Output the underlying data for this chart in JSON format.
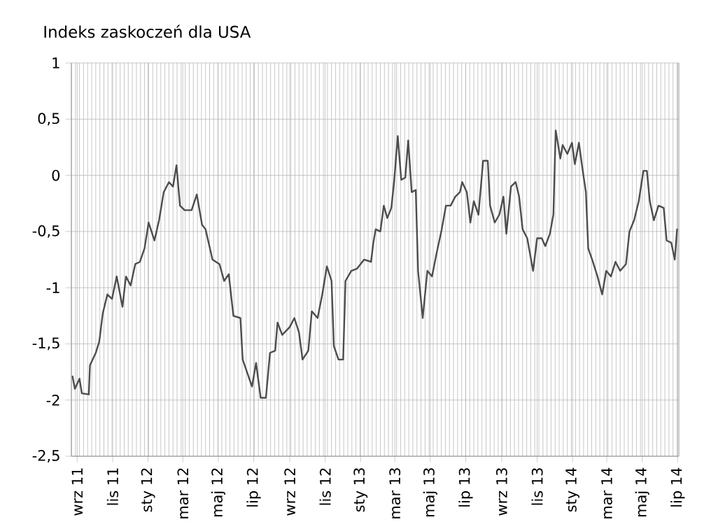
{
  "chart_data": {
    "type": "line",
    "title": "Indeks zaskoczeń dla USA",
    "x": [
      "2011-08-24",
      "2011-08-28",
      "2011-09-05",
      "2011-09-09",
      "2011-09-21",
      "2011-09-23",
      "2011-10-03",
      "2011-10-09",
      "2011-10-15",
      "2011-10-23",
      "2011-10-31",
      "2011-11-08",
      "2011-11-18",
      "2011-11-24",
      "2011-12-02",
      "2011-12-10",
      "2011-12-18",
      "2011-12-26",
      "2012-01-02",
      "2012-01-12",
      "2012-01-20",
      "2012-01-28",
      "2012-02-06",
      "2012-02-13",
      "2012-02-19",
      "2012-02-25",
      "2012-03-04",
      "2012-03-16",
      "2012-03-25",
      "2012-04-03",
      "2012-04-09",
      "2012-04-21",
      "2012-05-03",
      "2012-05-11",
      "2012-05-19",
      "2012-05-27",
      "2012-06-08",
      "2012-06-12",
      "2012-06-20",
      "2012-06-28",
      "2012-07-05",
      "2012-07-13",
      "2012-07-22",
      "2012-07-29",
      "2012-08-07",
      "2012-08-11",
      "2012-08-19",
      "2012-09-01",
      "2012-09-09",
      "2012-09-17",
      "2012-09-23",
      "2012-10-03",
      "2012-10-09",
      "2012-10-19",
      "2012-10-27",
      "2012-11-04",
      "2012-11-12",
      "2012-11-16",
      "2012-11-24",
      "2012-12-02",
      "2012-12-06",
      "2012-12-16",
      "2012-12-26",
      "2013-01-07",
      "2013-01-19",
      "2013-01-23",
      "2013-01-27",
      "2013-02-04",
      "2013-02-10",
      "2013-02-16",
      "2013-02-23",
      "2013-02-28",
      "2013-03-06",
      "2013-03-12",
      "2013-03-19",
      "2013-03-24",
      "2013-03-30",
      "2013-04-06",
      "2013-04-10",
      "2013-04-18",
      "2013-04-26",
      "2013-05-04",
      "2013-05-12",
      "2013-05-20",
      "2013-05-28",
      "2013-06-05",
      "2013-06-13",
      "2013-06-21",
      "2013-06-25",
      "2013-07-03",
      "2013-07-09",
      "2013-07-15",
      "2013-07-23",
      "2013-07-31",
      "2013-08-08",
      "2013-08-12",
      "2013-08-20",
      "2013-08-28",
      "2013-09-04",
      "2013-09-09",
      "2013-09-17",
      "2013-09-25",
      "2013-10-01",
      "2013-10-07",
      "2013-10-15",
      "2013-10-25",
      "2013-11-01",
      "2013-11-09",
      "2013-11-15",
      "2013-11-23",
      "2013-11-29",
      "2013-12-03",
      "2013-12-11",
      "2013-12-15",
      "2013-12-23",
      "2013-12-31",
      "2014-01-05",
      "2014-01-12",
      "2014-01-18",
      "2014-01-24",
      "2014-01-28",
      "2014-02-05",
      "2014-02-13",
      "2014-02-21",
      "2014-02-28",
      "2014-03-08",
      "2014-03-16",
      "2014-03-24",
      "2014-04-03",
      "2014-04-09",
      "2014-04-17",
      "2014-04-25",
      "2014-05-03",
      "2014-05-09",
      "2014-05-14",
      "2014-05-21",
      "2014-05-29",
      "2014-06-07",
      "2014-06-12",
      "2014-06-20",
      "2014-06-26",
      "2014-06-30"
    ],
    "series": [
      {
        "color": "#4d4d4d",
        "values": [
          -1.79,
          -1.9,
          -1.81,
          -1.94,
          -1.95,
          -1.69,
          -1.58,
          -1.48,
          -1.23,
          -1.06,
          -1.1,
          -0.9,
          -1.17,
          -0.9,
          -0.98,
          -0.79,
          -0.77,
          -0.65,
          -0.42,
          -0.58,
          -0.4,
          -0.15,
          -0.06,
          -0.1,
          0.09,
          -0.27,
          -0.31,
          -0.31,
          -0.17,
          -0.44,
          -0.48,
          -0.75,
          -0.79,
          -0.94,
          -0.88,
          -1.25,
          -1.27,
          -1.64,
          -1.76,
          -1.88,
          -1.67,
          -1.98,
          -1.98,
          -1.58,
          -1.56,
          -1.31,
          -1.42,
          -1.35,
          -1.27,
          -1.4,
          -1.64,
          -1.56,
          -1.21,
          -1.27,
          -1.06,
          -0.81,
          -0.94,
          -1.52,
          -1.64,
          -1.64,
          -0.94,
          -0.85,
          -0.83,
          -0.75,
          -0.77,
          -0.6,
          -0.48,
          -0.5,
          -0.27,
          -0.38,
          -0.29,
          -0.04,
          0.35,
          -0.04,
          -0.02,
          0.31,
          -0.15,
          -0.13,
          -0.85,
          -1.27,
          -0.85,
          -0.9,
          -0.69,
          -0.5,
          -0.27,
          -0.27,
          -0.19,
          -0.15,
          -0.06,
          -0.15,
          -0.42,
          -0.23,
          -0.35,
          0.13,
          0.13,
          -0.27,
          -0.42,
          -0.35,
          -0.19,
          -0.52,
          -0.1,
          -0.06,
          -0.19,
          -0.48,
          -0.56,
          -0.85,
          -0.56,
          -0.56,
          -0.63,
          -0.52,
          -0.35,
          0.4,
          0.15,
          0.27,
          0.19,
          0.29,
          0.1,
          0.29,
          0.06,
          -0.15,
          -0.65,
          -0.77,
          -0.9,
          -1.06,
          -0.85,
          -0.9,
          -0.77,
          -0.85,
          -0.79,
          -0.5,
          -0.4,
          -0.23,
          0.04,
          0.04,
          -0.23,
          -0.4,
          -0.27,
          -0.29,
          -0.58,
          -0.6,
          -0.75,
          -0.48
        ]
      }
    ],
    "xlim": [
      "2011-08-22",
      "2014-07-03"
    ],
    "xticks": [
      {
        "value": "2011-09-01",
        "label": "wrz 11"
      },
      {
        "value": "2011-11-01",
        "label": "lis 11"
      },
      {
        "value": "2012-01-01",
        "label": "sty 12"
      },
      {
        "value": "2012-03-01",
        "label": "mar 12"
      },
      {
        "value": "2012-05-01",
        "label": "maj 12"
      },
      {
        "value": "2012-07-01",
        "label": "lip 12"
      },
      {
        "value": "2012-09-01",
        "label": "wrz 12"
      },
      {
        "value": "2012-11-01",
        "label": "lis 12"
      },
      {
        "value": "2013-01-01",
        "label": "sty 13"
      },
      {
        "value": "2013-03-01",
        "label": "mar 13"
      },
      {
        "value": "2013-05-01",
        "label": "maj 13"
      },
      {
        "value": "2013-07-01",
        "label": "lip 13"
      },
      {
        "value": "2013-09-01",
        "label": "wrz 13"
      },
      {
        "value": "2013-11-01",
        "label": "lis 13"
      },
      {
        "value": "2014-01-01",
        "label": "sty 14"
      },
      {
        "value": "2014-03-01",
        "label": "mar 14"
      },
      {
        "value": "2014-05-01",
        "label": "maj 14"
      },
      {
        "value": "2014-07-01",
        "label": "lip 14"
      }
    ],
    "ylim": [
      -2.5,
      1
    ],
    "yticks": [
      {
        "value": -2.5,
        "label": "-2,5"
      },
      {
        "value": -2,
        "label": "-2"
      },
      {
        "value": -1.5,
        "label": "-1,5"
      },
      {
        "value": -1,
        "label": "-1"
      },
      {
        "value": -0.5,
        "label": "-0,5"
      },
      {
        "value": 0,
        "label": "0"
      },
      {
        "value": 0.5,
        "label": "0,5"
      },
      {
        "value": 1,
        "label": "1"
      }
    ],
    "grid": true,
    "legend": false,
    "marker": "none",
    "line_style": "solid"
  }
}
